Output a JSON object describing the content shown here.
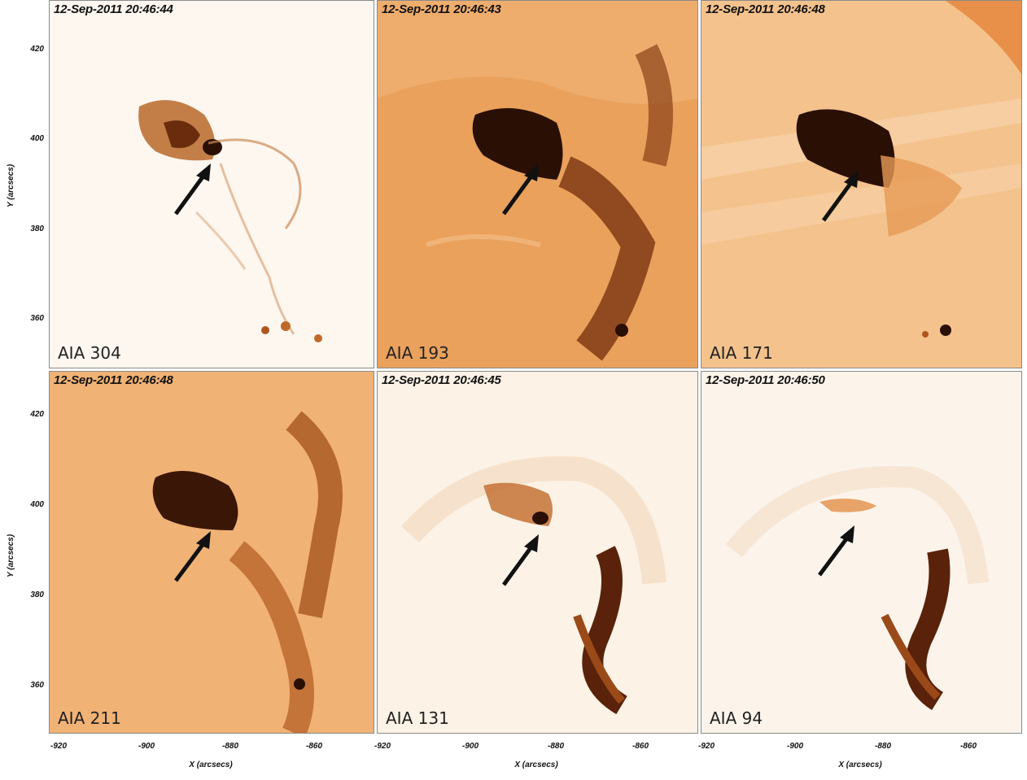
{
  "panels": [
    {
      "timestamp": "12-Sep-2011 20:46:44",
      "channel": "AIA 304",
      "bg": "#fdf6ee"
    },
    {
      "timestamp": "12-Sep-2011 20:46:43",
      "channel": "AIA 193",
      "bg": "#e9a25c"
    },
    {
      "timestamp": "12-Sep-2011 20:46:48",
      "channel": "AIA 171",
      "bg": "#f3c18a"
    },
    {
      "timestamp": "12-Sep-2011 20:46:48",
      "channel": "AIA 211",
      "bg": "#efb274"
    },
    {
      "timestamp": "12-Sep-2011 20:46:45",
      "channel": "AIA 131",
      "bg": "#fbefe2"
    },
    {
      "timestamp": "12-Sep-2011 20:46:50",
      "channel": "AIA 94",
      "bg": "#fcf3ea"
    }
  ],
  "axes": {
    "y_label": "Y (arcsecs)",
    "x_label": "X (arcsecs)",
    "y_ticks": [
      "420",
      "400",
      "380",
      "360"
    ],
    "x_ticks_col1": [
      "-920",
      "-900",
      "-880",
      "-860"
    ],
    "x_ticks_col2": [
      "-920",
      "-900",
      "-880",
      "-860"
    ],
    "x_ticks_col3": [
      "-920",
      "-900",
      "-880",
      "-860"
    ]
  },
  "colors": {
    "dark": "#2a0f05",
    "mid": "#b5621f",
    "light": "#fdf6ee"
  }
}
